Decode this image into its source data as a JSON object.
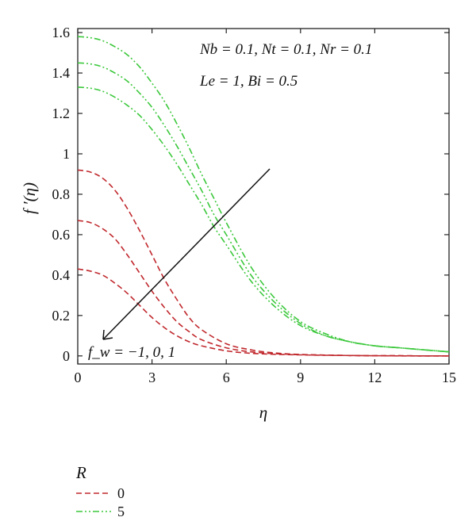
{
  "chart_data": {
    "type": "line",
    "xlabel": "η",
    "ylabel": "f ′(η)",
    "xlim": [
      0,
      15
    ],
    "ylim": [
      -0.04,
      1.62
    ],
    "x_ticks": [
      "0",
      "3",
      "6",
      "9",
      "12",
      "15"
    ],
    "y_ticks": [
      "0",
      "0.2",
      "0.4",
      "0.6",
      "0.8",
      "1",
      "1.2",
      "1.4",
      "1.6"
    ],
    "annotations": {
      "params_line1": "Nb = 0.1, Nt = 0.1, Nr = 0.1",
      "params_line2": "Le = 1, Bi = 0.5",
      "arrow_label": "f_w = −1, 0, 1"
    },
    "legend": {
      "title": "R",
      "placement": "bottom-left",
      "entries": [
        {
          "label": "0",
          "color": "#c0282d",
          "dash": "dashed"
        },
        {
          "label": "5",
          "color": "#3cc83c",
          "dash": "dash-dot-dot"
        }
      ]
    },
    "series": [
      {
        "R": "0",
        "fw": "-1",
        "color": "#c0282d",
        "x": [
          0,
          0.5,
          1,
          1.5,
          2,
          2.5,
          3,
          3.5,
          4,
          4.5,
          5,
          6,
          7,
          8,
          9,
          10,
          11,
          12,
          13,
          14,
          15
        ],
        "y": [
          0.92,
          0.91,
          0.88,
          0.82,
          0.73,
          0.62,
          0.5,
          0.38,
          0.28,
          0.19,
          0.13,
          0.06,
          0.03,
          0.014,
          0.007,
          0.004,
          0.002,
          0.001,
          0.001,
          0.0,
          0.0
        ]
      },
      {
        "R": "0",
        "fw": "0",
        "color": "#c0282d",
        "x": [
          0,
          0.5,
          1,
          1.5,
          2,
          2.5,
          3,
          3.5,
          4,
          4.5,
          5,
          6,
          7,
          8,
          9,
          10,
          11,
          12,
          13,
          14,
          15
        ],
        "y": [
          0.67,
          0.66,
          0.63,
          0.58,
          0.5,
          0.41,
          0.32,
          0.24,
          0.17,
          0.12,
          0.08,
          0.04,
          0.02,
          0.011,
          0.006,
          0.004,
          0.002,
          0.001,
          0.001,
          0.0,
          0.0
        ]
      },
      {
        "R": "0",
        "fw": "1",
        "color": "#c0282d",
        "x": [
          0,
          0.5,
          1,
          1.5,
          2,
          2.5,
          3,
          3.5,
          4,
          4.5,
          5,
          6,
          7,
          8,
          9,
          10,
          11,
          12,
          13,
          14,
          15
        ],
        "y": [
          0.43,
          0.42,
          0.4,
          0.36,
          0.31,
          0.25,
          0.19,
          0.14,
          0.1,
          0.07,
          0.05,
          0.025,
          0.013,
          0.008,
          0.005,
          0.003,
          0.002,
          0.001,
          0.0,
          0.0,
          0.0
        ]
      },
      {
        "R": "5",
        "fw": "-1",
        "color": "#3cc83c",
        "x": [
          0,
          0.5,
          1,
          1.5,
          2,
          2.5,
          3,
          3.5,
          4,
          4.5,
          5,
          5.5,
          6,
          7,
          8,
          9,
          10,
          11,
          12,
          13,
          14,
          15
        ],
        "y": [
          1.58,
          1.575,
          1.56,
          1.53,
          1.49,
          1.43,
          1.35,
          1.26,
          1.15,
          1.03,
          0.9,
          0.78,
          0.66,
          0.44,
          0.28,
          0.17,
          0.11,
          0.07,
          0.05,
          0.04,
          0.03,
          0.02
        ]
      },
      {
        "R": "5",
        "fw": "0",
        "color": "#3cc83c",
        "x": [
          0,
          0.5,
          1,
          1.5,
          2,
          2.5,
          3,
          3.5,
          4,
          4.5,
          5,
          5.5,
          6,
          7,
          8,
          9,
          10,
          11,
          12,
          13,
          14,
          15
        ],
        "y": [
          1.45,
          1.445,
          1.43,
          1.4,
          1.36,
          1.3,
          1.23,
          1.14,
          1.04,
          0.93,
          0.82,
          0.7,
          0.6,
          0.4,
          0.26,
          0.16,
          0.1,
          0.07,
          0.05,
          0.04,
          0.03,
          0.02
        ]
      },
      {
        "R": "5",
        "fw": "1",
        "color": "#3cc83c",
        "x": [
          0,
          0.5,
          1,
          1.5,
          2,
          2.5,
          3,
          3.5,
          4,
          4.5,
          5,
          5.5,
          6,
          7,
          8,
          9,
          10,
          11,
          12,
          13,
          14,
          15
        ],
        "y": [
          1.33,
          1.325,
          1.31,
          1.28,
          1.24,
          1.19,
          1.12,
          1.04,
          0.95,
          0.85,
          0.75,
          0.64,
          0.55,
          0.37,
          0.24,
          0.15,
          0.1,
          0.07,
          0.05,
          0.04,
          0.03,
          0.02
        ]
      }
    ]
  }
}
